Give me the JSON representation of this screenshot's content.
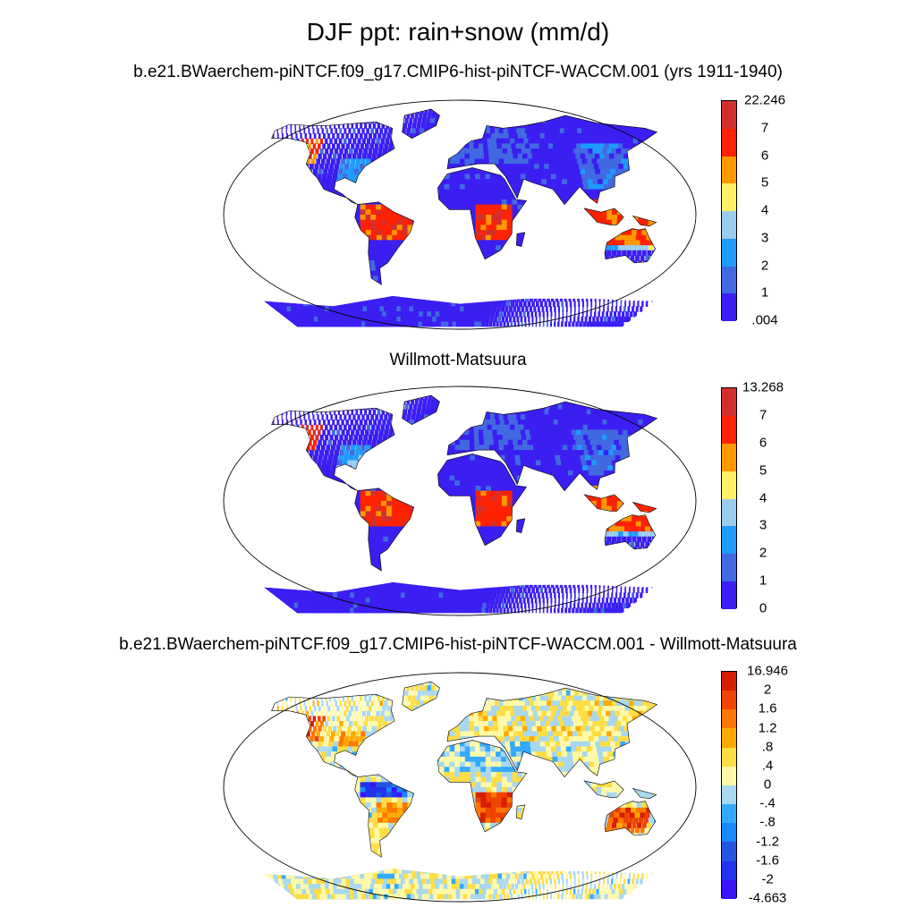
{
  "title": "DJF ppt: rain+snow (mm/d)",
  "panels": [
    {
      "title": "b.e21.BWaerchem-piNTCF.f09_g17.CMIP6-hist-piNTCF-WACCM.001 (yrs 1911-1940)",
      "colorbar": {
        "labels": [
          ".004",
          "1",
          "2",
          "3",
          "4",
          "5",
          "6",
          "7",
          "22.246"
        ],
        "colors": [
          "#3b1ef2",
          "#4169e1",
          "#1e9bff",
          "#99ccee",
          "#fff066",
          "#ff9900",
          "#ff2200",
          "#d42f2f"
        ]
      }
    },
    {
      "title": "Willmott-Matsuura",
      "colorbar": {
        "labels": [
          "0",
          "1",
          "2",
          "3",
          "4",
          "5",
          "6",
          "7",
          "13.268"
        ],
        "colors": [
          "#3b1ef2",
          "#4169e1",
          "#1e9bff",
          "#99ccee",
          "#fff066",
          "#ff9900",
          "#ff2200",
          "#d42f2f"
        ]
      }
    },
    {
      "title": "b.e21.BWaerchem-piNTCF.f09_g17.CMIP6-hist-piNTCF-WACCM.001 - Willmott-Matsuura",
      "colorbar": {
        "labels": [
          "-4.663",
          "-2",
          "-1.6",
          "-1.2",
          "-.8",
          "-.4",
          "0",
          ".4",
          ".8",
          "1.2",
          "1.6",
          "2",
          "16.946"
        ],
        "colors": [
          "#3a12ff",
          "#2233ee",
          "#2255e0",
          "#1a88ff",
          "#33aaff",
          "#a8d8f0",
          "#fffaaa",
          "#ffdd44",
          "#ffaa00",
          "#ff7700",
          "#ee4400",
          "#d81e00"
        ]
      }
    }
  ]
}
